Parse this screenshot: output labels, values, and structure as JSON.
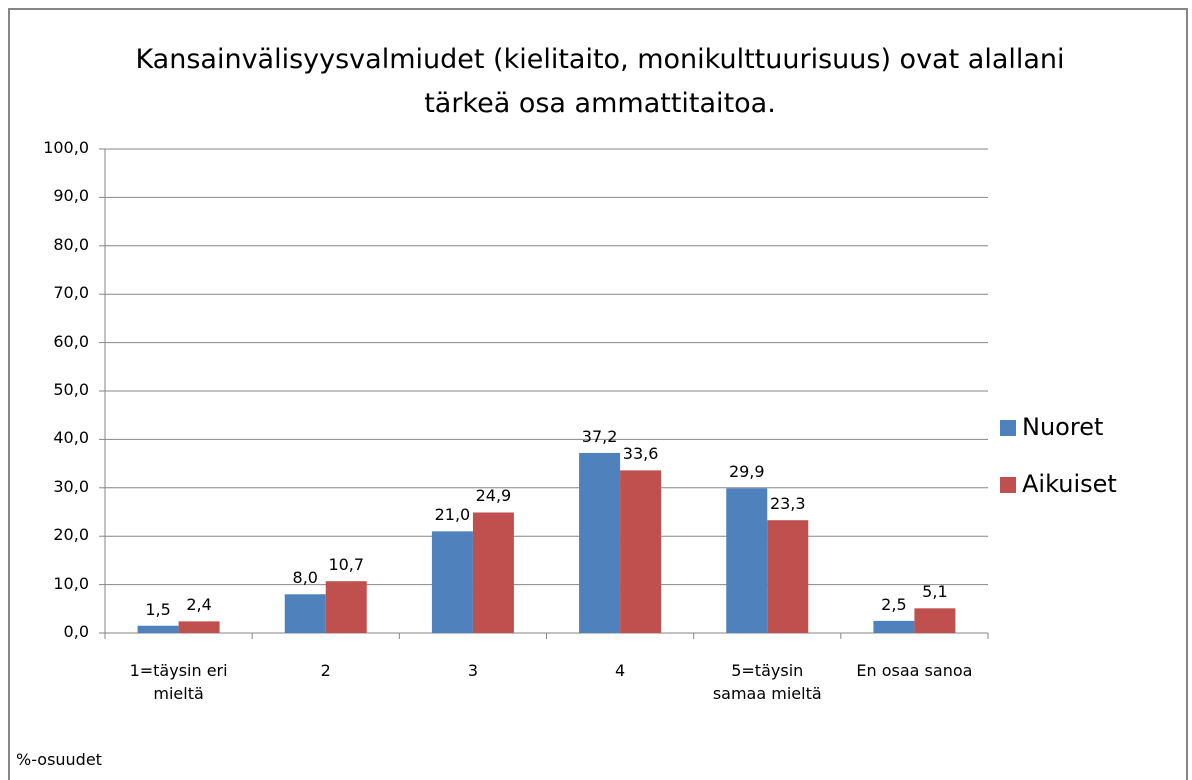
{
  "chart_data": {
    "type": "bar",
    "title": "Kansainvälisyysvalmiudet (kielitaito, monikulttuurisuus) ovat alallani tärkeä osa ammattitaitoa.",
    "categories": [
      "1=täysin eri mieltä",
      "2",
      "3",
      "4",
      "5=täysin samaa mieltä",
      "En osaa sanoa"
    ],
    "series": [
      {
        "name": "Nuoret",
        "color": "#4f81bd",
        "values": [
          1.5,
          8.0,
          21.0,
          37.2,
          29.9,
          2.5
        ],
        "value_labels": [
          "1,5",
          "8,0",
          "21,0",
          "37,2",
          "29,9",
          "2,5"
        ]
      },
      {
        "name": "Aikuiset",
        "color": "#c0504d",
        "values": [
          2.4,
          10.7,
          24.9,
          33.6,
          23.3,
          5.1
        ],
        "value_labels": [
          "2,4",
          "10,7",
          "24,9",
          "33,6",
          "23,3",
          "5,1"
        ]
      }
    ],
    "ylim": [
      0,
      100
    ],
    "yticks": [
      {
        "value": 0,
        "label": "0,0"
      },
      {
        "value": 10,
        "label": "10,0"
      },
      {
        "value": 20,
        "label": "20,0"
      },
      {
        "value": 30,
        "label": "30,0"
      },
      {
        "value": 40,
        "label": "40,0"
      },
      {
        "value": 50,
        "label": "50,0"
      },
      {
        "value": 60,
        "label": "60,0"
      },
      {
        "value": 70,
        "label": "70,0"
      },
      {
        "value": 80,
        "label": "80,0"
      },
      {
        "value": 90,
        "label": "90,0"
      },
      {
        "value": 100,
        "label": "100,0"
      }
    ],
    "grid": true,
    "legend": "right",
    "note": "%-osuudet"
  }
}
